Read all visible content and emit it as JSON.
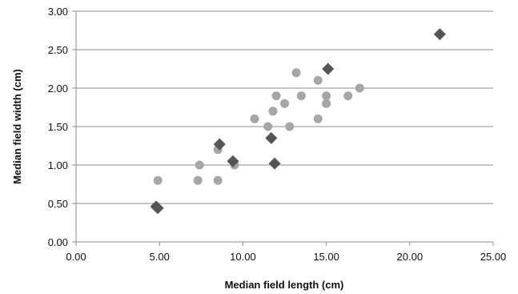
{
  "chart_data": {
    "type": "scatter",
    "xlabel": "Median field length (cm)",
    "ylabel": "Median field width (cm)",
    "xlim": [
      0,
      25
    ],
    "ylim": [
      0,
      3
    ],
    "x_ticks": [
      "0.00",
      "5.00",
      "10.00",
      "15.00",
      "20.00",
      "25.00"
    ],
    "y_ticks": [
      "0.00",
      "0.50",
      "1.00",
      "1.50",
      "2.00",
      "2.50",
      "3.00"
    ],
    "grid": "horizontal",
    "legend": "none",
    "series": [
      {
        "marker": "diamond",
        "color": "#555555",
        "points": [
          {
            "x": 4.8,
            "y": 0.46
          },
          {
            "x": 4.9,
            "y": 0.44
          },
          {
            "x": 8.6,
            "y": 1.27
          },
          {
            "x": 9.4,
            "y": 1.05
          },
          {
            "x": 11.7,
            "y": 1.35
          },
          {
            "x": 11.9,
            "y": 1.02
          },
          {
            "x": 15.1,
            "y": 2.25
          },
          {
            "x": 21.8,
            "y": 2.7
          }
        ]
      },
      {
        "marker": "circle",
        "color": "#a6a6a6",
        "points": [
          {
            "x": 4.9,
            "y": 0.8
          },
          {
            "x": 7.3,
            "y": 0.8
          },
          {
            "x": 7.4,
            "y": 1.0
          },
          {
            "x": 8.5,
            "y": 0.8
          },
          {
            "x": 8.5,
            "y": 1.2
          },
          {
            "x": 9.5,
            "y": 1.0
          },
          {
            "x": 10.7,
            "y": 1.6
          },
          {
            "x": 11.5,
            "y": 1.5
          },
          {
            "x": 11.8,
            "y": 1.7
          },
          {
            "x": 12.0,
            "y": 1.9
          },
          {
            "x": 12.5,
            "y": 1.8
          },
          {
            "x": 12.8,
            "y": 1.5
          },
          {
            "x": 13.2,
            "y": 2.2
          },
          {
            "x": 13.5,
            "y": 1.9
          },
          {
            "x": 14.5,
            "y": 1.6
          },
          {
            "x": 14.5,
            "y": 2.1
          },
          {
            "x": 15.0,
            "y": 1.8
          },
          {
            "x": 15.0,
            "y": 1.9
          },
          {
            "x": 16.3,
            "y": 1.9
          },
          {
            "x": 17.0,
            "y": 2.0
          }
        ]
      }
    ]
  }
}
